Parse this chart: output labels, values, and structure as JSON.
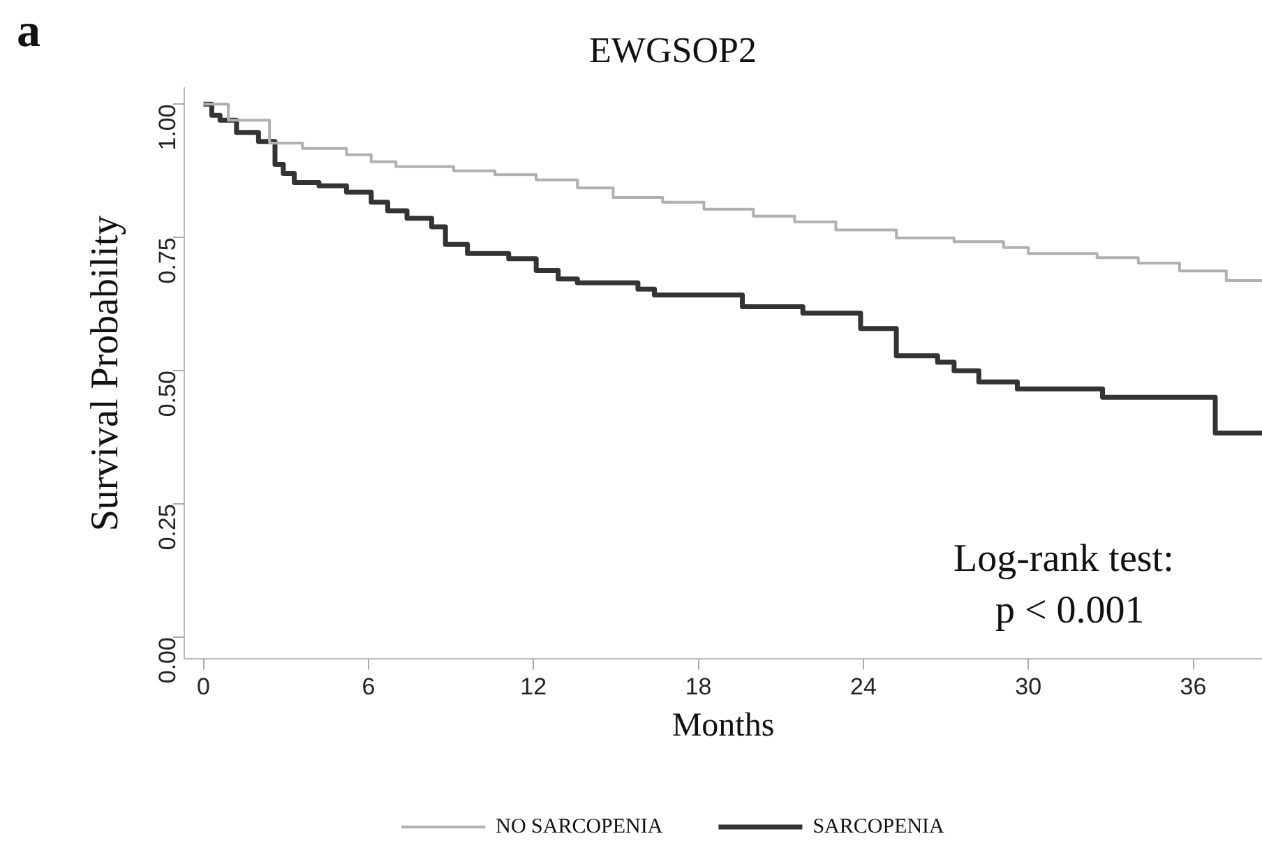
{
  "chart_data": {
    "type": "step",
    "title": "EWGSOP2",
    "xlabel": "Months",
    "ylabel": "Survival Probability",
    "xlim": [
      -0.7,
      38.5
    ],
    "xticks": [
      0,
      6,
      12,
      18,
      24,
      30,
      36
    ],
    "ylim": [
      -0.04,
      1.03
    ],
    "yticks": [
      {
        "value": 0,
        "label": "0.00"
      },
      {
        "value": 0.25,
        "label": "0.25"
      },
      {
        "value": 0.5,
        "label": "0.50"
      },
      {
        "value": 0.75,
        "label": "0.75"
      },
      {
        "value": 1,
        "label": "1.00"
      }
    ],
    "grid": false,
    "legend": "bottom",
    "marker": "none",
    "line_style": "solid",
    "annotations": [
      "a",
      "Log-rank test:",
      "p < 0.001"
    ],
    "series": [
      {
        "name": "NO SARCOPENIA",
        "color": "#b0b0b0",
        "x": [
          0,
          0.9,
          2.4,
          3.6,
          5.2,
          6.1,
          7.0,
          9.1,
          10.6,
          12.1,
          13.6,
          14.9,
          16.7,
          18.2,
          20,
          21.5,
          23,
          25.2,
          27.3,
          29.1,
          30,
          32.5,
          34,
          35.5,
          37.2,
          38.5
        ],
        "values": [
          1,
          0.97,
          0.927,
          0.917,
          0.905,
          0.892,
          0.883,
          0.875,
          0.868,
          0.858,
          0.843,
          0.825,
          0.816,
          0.803,
          0.79,
          0.779,
          0.764,
          0.749,
          0.742,
          0.731,
          0.72,
          0.712,
          0.702,
          0.687,
          0.669,
          0.669
        ]
      },
      {
        "name": "SARCOPENIA",
        "color": "#333333",
        "x": [
          0,
          0.3,
          0.6,
          1.2,
          2.0,
          2.6,
          2.9,
          3.3,
          4.2,
          5.2,
          6.1,
          6.7,
          7.4,
          8.3,
          8.8,
          9.6,
          11.1,
          12.1,
          12.9,
          13.6,
          15.8,
          16.4,
          19.6,
          21.8,
          23.9,
          25.2,
          26.7,
          27.3,
          28.2,
          29.6,
          32.7,
          36.8,
          38.5
        ],
        "values": [
          1,
          0.979,
          0.97,
          0.947,
          0.93,
          0.887,
          0.87,
          0.853,
          0.847,
          0.835,
          0.816,
          0.8,
          0.786,
          0.77,
          0.737,
          0.72,
          0.71,
          0.688,
          0.672,
          0.665,
          0.653,
          0.642,
          0.62,
          0.608,
          0.579,
          0.528,
          0.516,
          0.5,
          0.479,
          0.466,
          0.45,
          0.383,
          0.383
        ]
      }
    ]
  }
}
